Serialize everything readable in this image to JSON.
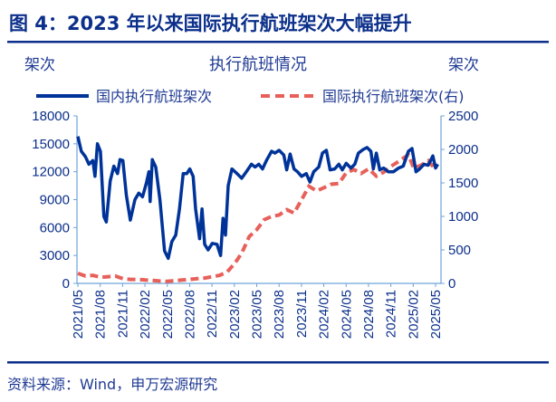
{
  "figure_title": "图 4：2023 年以来国际执行航班架次大幅提升",
  "source": "资料来源：Wind，申万宏源研究",
  "colors": {
    "domestic": "#003399",
    "international": "#e8605a",
    "title": "#0b2f8a",
    "axis": "#6fa3d8"
  },
  "chart_data": {
    "type": "line",
    "title": "执行航班情况",
    "ylabel": "架次",
    "y2label": "架次",
    "ylim": [
      0,
      18000
    ],
    "yticks": [
      "0",
      "3000",
      "6000",
      "9000",
      "12000",
      "15000",
      "18000"
    ],
    "y2lim": [
      0,
      2500
    ],
    "y2ticks": [
      "0",
      "500",
      "1000",
      "1500",
      "2000",
      "2500"
    ],
    "xticks": [
      "2021/05",
      "2021/08",
      "2021/11",
      "2022/02",
      "2022/05",
      "2022/08",
      "2022/11",
      "2023/02",
      "2023/05",
      "2023/08",
      "2023/11",
      "2024/02",
      "2024/05",
      "2024/08",
      "2024/11",
      "2025/02",
      "2025/05"
    ],
    "grid": false,
    "legend": "top",
    "series": [
      {
        "name": "国内执行航班架次",
        "axis": "left",
        "style": "solid",
        "points": [
          [
            "2021-05-01",
            15800
          ],
          [
            "2021-05-15",
            14200
          ],
          [
            "2021-06-01",
            13600
          ],
          [
            "2021-06-15",
            12800
          ],
          [
            "2021-07-01",
            13200
          ],
          [
            "2021-07-10",
            11500
          ],
          [
            "2021-07-20",
            15000
          ],
          [
            "2021-08-01",
            14200
          ],
          [
            "2021-08-15",
            7200
          ],
          [
            "2021-08-25",
            6600
          ],
          [
            "2021-09-10",
            11000
          ],
          [
            "2021-09-25",
            12600
          ],
          [
            "2021-10-10",
            11800
          ],
          [
            "2021-10-20",
            13300
          ],
          [
            "2021-11-01",
            13200
          ],
          [
            "2021-11-15",
            9500
          ],
          [
            "2021-12-01",
            6800
          ],
          [
            "2021-12-20",
            9000
          ],
          [
            "2022-01-05",
            9700
          ],
          [
            "2022-01-20",
            9300
          ],
          [
            "2022-02-05",
            10800
          ],
          [
            "2022-02-15",
            12000
          ],
          [
            "2022-02-20",
            8800
          ],
          [
            "2022-03-01",
            13300
          ],
          [
            "2022-03-15",
            12500
          ],
          [
            "2022-04-01",
            9000
          ],
          [
            "2022-04-20",
            3500
          ],
          [
            "2022-05-05",
            2700
          ],
          [
            "2022-05-20",
            4500
          ],
          [
            "2022-06-05",
            5200
          ],
          [
            "2022-06-20",
            8000
          ],
          [
            "2022-07-05",
            11800
          ],
          [
            "2022-07-20",
            11800
          ],
          [
            "2022-08-01",
            12300
          ],
          [
            "2022-08-15",
            11500
          ],
          [
            "2022-08-25",
            8000
          ],
          [
            "2022-09-10",
            4800
          ],
          [
            "2022-09-20",
            8000
          ],
          [
            "2022-10-01",
            4200
          ],
          [
            "2022-10-15",
            3600
          ],
          [
            "2022-11-01",
            4300
          ],
          [
            "2022-11-20",
            4200
          ],
          [
            "2022-12-05",
            3000
          ],
          [
            "2022-12-15",
            7000
          ],
          [
            "2022-12-25",
            5200
          ],
          [
            "2023-01-05",
            10500
          ],
          [
            "2023-01-20",
            12300
          ],
          [
            "2023-02-10",
            11800
          ],
          [
            "2023-03-01",
            11300
          ],
          [
            "2023-03-20",
            12000
          ],
          [
            "2023-04-10",
            12800
          ],
          [
            "2023-04-25",
            12500
          ],
          [
            "2023-05-10",
            12800
          ],
          [
            "2023-05-25",
            12300
          ],
          [
            "2023-06-10",
            13200
          ],
          [
            "2023-07-01",
            14200
          ],
          [
            "2023-07-15",
            14000
          ],
          [
            "2023-08-01",
            14300
          ],
          [
            "2023-08-20",
            13800
          ],
          [
            "2023-09-01",
            12200
          ],
          [
            "2023-09-15",
            13900
          ],
          [
            "2023-10-01",
            12300
          ],
          [
            "2023-10-15",
            12000
          ],
          [
            "2023-11-01",
            11500
          ],
          [
            "2023-11-20",
            11800
          ],
          [
            "2023-12-05",
            10900
          ],
          [
            "2023-12-20",
            12000
          ],
          [
            "2024-01-10",
            12500
          ],
          [
            "2024-01-25",
            14000
          ],
          [
            "2024-02-10",
            14300
          ],
          [
            "2024-02-25",
            12200
          ],
          [
            "2024-03-15",
            12300
          ],
          [
            "2024-04-01",
            12800
          ],
          [
            "2024-04-15",
            12200
          ],
          [
            "2024-05-01",
            12900
          ],
          [
            "2024-05-20",
            12400
          ],
          [
            "2024-06-05",
            12800
          ],
          [
            "2024-06-20",
            14000
          ],
          [
            "2024-07-10",
            14400
          ],
          [
            "2024-07-25",
            14600
          ],
          [
            "2024-08-10",
            14200
          ],
          [
            "2024-08-20",
            12300
          ],
          [
            "2024-09-01",
            14000
          ],
          [
            "2024-09-15",
            12200
          ],
          [
            "2024-10-01",
            12400
          ],
          [
            "2024-10-20",
            12000
          ],
          [
            "2024-11-10",
            12000
          ],
          [
            "2024-12-01",
            12400
          ],
          [
            "2024-12-20",
            12600
          ],
          [
            "2025-01-10",
            14200
          ],
          [
            "2025-01-25",
            14500
          ],
          [
            "2025-02-10",
            12000
          ],
          [
            "2025-02-25",
            12300
          ],
          [
            "2025-03-15",
            12800
          ],
          [
            "2025-04-01",
            12700
          ],
          [
            "2025-04-20",
            13700
          ],
          [
            "2025-05-01",
            12400
          ],
          [
            "2025-05-10",
            12800
          ]
        ]
      },
      {
        "name": "国际执行航班架次(右)",
        "axis": "right",
        "style": "dashed",
        "points": [
          [
            "2021-05-01",
            150
          ],
          [
            "2021-06-01",
            110
          ],
          [
            "2021-07-01",
            120
          ],
          [
            "2021-08-01",
            90
          ],
          [
            "2021-09-01",
            100
          ],
          [
            "2021-10-01",
            110
          ],
          [
            "2021-11-01",
            70
          ],
          [
            "2021-12-01",
            60
          ],
          [
            "2022-01-01",
            60
          ],
          [
            "2022-02-01",
            50
          ],
          [
            "2022-03-01",
            45
          ],
          [
            "2022-04-01",
            35
          ],
          [
            "2022-05-01",
            30
          ],
          [
            "2022-06-01",
            40
          ],
          [
            "2022-07-01",
            50
          ],
          [
            "2022-08-01",
            60
          ],
          [
            "2022-09-01",
            70
          ],
          [
            "2022-10-01",
            80
          ],
          [
            "2022-11-01",
            100
          ],
          [
            "2022-12-01",
            120
          ],
          [
            "2023-01-01",
            170
          ],
          [
            "2023-02-01",
            300
          ],
          [
            "2023-03-01",
            450
          ],
          [
            "2023-04-01",
            700
          ],
          [
            "2023-05-01",
            800
          ],
          [
            "2023-06-01",
            950
          ],
          [
            "2023-07-01",
            1000
          ],
          [
            "2023-08-01",
            1020
          ],
          [
            "2023-09-01",
            1100
          ],
          [
            "2023-10-01",
            1050
          ],
          [
            "2023-11-01",
            1250
          ],
          [
            "2023-12-01",
            1450
          ],
          [
            "2024-01-01",
            1380
          ],
          [
            "2024-02-01",
            1430
          ],
          [
            "2024-03-01",
            1480
          ],
          [
            "2024-04-01",
            1490
          ],
          [
            "2024-05-01",
            1650
          ],
          [
            "2024-06-01",
            1700
          ],
          [
            "2024-07-01",
            1640
          ],
          [
            "2024-08-01",
            1710
          ],
          [
            "2024-09-01",
            1600
          ],
          [
            "2024-10-01",
            1660
          ],
          [
            "2024-11-01",
            1750
          ],
          [
            "2024-12-01",
            1820
          ],
          [
            "2025-01-10",
            1920
          ],
          [
            "2025-02-01",
            1720
          ],
          [
            "2025-03-01",
            1760
          ],
          [
            "2025-04-01",
            1830
          ],
          [
            "2025-05-01",
            1700
          ]
        ]
      }
    ]
  }
}
